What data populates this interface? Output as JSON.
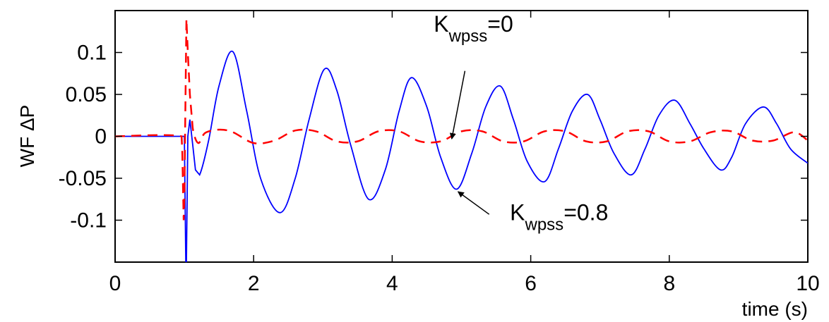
{
  "chart_data": {
    "type": "line",
    "title": "",
    "xlabel": "time (s)",
    "ylabel": "WF ΔP",
    "xlim": [
      0,
      10
    ],
    "ylim": [
      -0.15,
      0.15
    ],
    "grid": false,
    "xticks": [
      0,
      2,
      4,
      6,
      8,
      10
    ],
    "xtick_labels": [
      "0",
      "2",
      "4",
      "6",
      "8",
      "10"
    ],
    "yticks": [
      0.1,
      0.05,
      0,
      -0.05,
      -0.1
    ],
    "ytick_labels": [
      "0.1",
      "0.05",
      "0",
      "-0.05",
      "-0.1"
    ],
    "series": [
      {
        "color": "#0000ff",
        "style": "solid",
        "x": [
          0,
          0.98,
          1.0,
          1.02,
          1.03,
          1.05,
          1.08,
          1.12,
          1.16,
          1.22,
          1.35,
          1.5,
          1.7,
          1.9,
          2.1,
          2.38,
          2.6,
          2.8,
          3.02,
          3.2,
          3.4,
          3.66,
          3.9,
          4.1,
          4.28,
          4.5,
          4.7,
          4.93,
          5.15,
          5.35,
          5.56,
          5.75,
          5.95,
          6.2,
          6.4,
          6.6,
          6.82,
          7.0,
          7.2,
          7.45,
          7.65,
          7.85,
          8.08,
          8.3,
          8.5,
          8.74,
          8.9,
          9.1,
          9.36,
          9.55,
          9.75,
          10.0
        ],
        "y": [
          0,
          0,
          0,
          -0.15,
          -0.15,
          0,
          0.02,
          -0.01,
          -0.04,
          -0.046,
          -0.005,
          0.06,
          0.101,
          0.03,
          -0.05,
          -0.091,
          -0.05,
          0.02,
          0.08,
          0.055,
          -0.01,
          -0.075,
          -0.04,
          0.03,
          0.07,
          0.035,
          -0.025,
          -0.063,
          -0.02,
          0.035,
          0.06,
          0.02,
          -0.03,
          -0.054,
          -0.015,
          0.03,
          0.05,
          0.02,
          -0.02,
          -0.046,
          -0.015,
          0.025,
          0.043,
          0.015,
          -0.015,
          -0.04,
          -0.025,
          0.015,
          0.035,
          0.015,
          -0.015,
          -0.032
        ]
      },
      {
        "color": "#ff0000",
        "style": "dashed",
        "x": [
          0,
          0.96,
          0.97,
          0.99,
          1.0,
          1.03,
          1.05,
          1.08,
          1.12,
          1.2,
          1.3,
          1.5,
          1.7,
          2.0,
          2.3,
          2.6,
          2.9,
          3.2,
          3.5,
          3.8,
          4.1,
          4.4,
          4.7,
          5.0,
          5.3,
          5.6,
          5.9,
          6.2,
          6.5,
          6.8,
          7.1,
          7.4,
          7.7,
          8.0,
          8.3,
          8.6,
          8.9,
          9.2,
          9.5,
          9.8,
          10.0
        ],
        "y": [
          0,
          0,
          -0.02,
          -0.1,
          -0.07,
          0.14,
          0.1,
          0.05,
          0.01,
          -0.008,
          0.004,
          0.008,
          0.005,
          -0.008,
          -0.005,
          0.007,
          0.006,
          -0.006,
          -0.006,
          0.006,
          0.006,
          -0.006,
          -0.006,
          0.006,
          0.006,
          -0.006,
          -0.006,
          0.006,
          0.006,
          -0.006,
          -0.006,
          0.006,
          0.006,
          -0.006,
          -0.006,
          0.005,
          0.006,
          -0.005,
          -0.005,
          0.005,
          -0.005
        ]
      }
    ],
    "annotations": [
      {
        "text": "K",
        "subscript": "wpss",
        "suffix": "=0",
        "text_x": 4.6,
        "text_y": 0.125,
        "arrow_from": [
          5.05,
          0.078
        ],
        "arrow_to": [
          4.86,
          -0.003
        ]
      },
      {
        "text": "K",
        "subscript": "wpss",
        "suffix": "=0.8",
        "text_x": 5.7,
        "text_y": -0.1,
        "arrow_from": [
          5.4,
          -0.093
        ],
        "arrow_to": [
          4.95,
          -0.066
        ]
      }
    ]
  }
}
